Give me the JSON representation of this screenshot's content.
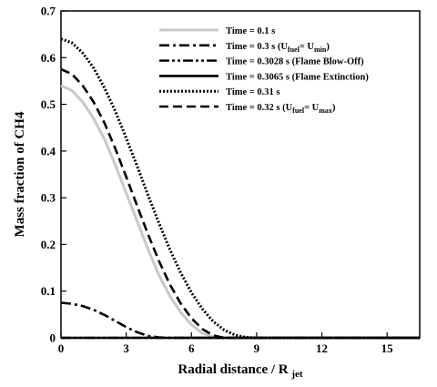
{
  "chart_data": {
    "type": "line",
    "title": "",
    "xlabel": {
      "text": "Radial distance / R",
      "sub": "jet"
    },
    "ylabel": "Mass fraction of CH4",
    "xlim": [
      0,
      16.5
    ],
    "ylim": [
      0,
      0.7
    ],
    "xticks": [
      0,
      3,
      6,
      9,
      12,
      15
    ],
    "yticks": [
      0,
      0.1,
      0.2,
      0.3,
      0.4,
      0.5,
      0.6,
      0.7
    ],
    "ytick_labels": [
      "0",
      "0.1",
      "0.2",
      "0.3",
      "0.4",
      "0.5",
      "0.6",
      "0.7"
    ],
    "grid": false,
    "legend_position": "top-right",
    "series": [
      {
        "name": "Time = 0.1 s",
        "legend": [
          {
            "t": "Time = 0.1 s"
          }
        ],
        "style": "solid",
        "color": "#c8c8c8",
        "width": 3,
        "x": [
          0,
          0.5,
          1,
          1.5,
          2,
          2.5,
          3,
          3.5,
          4,
          4.5,
          5,
          5.5,
          6,
          6.5,
          7,
          7.5,
          8,
          16.5
        ],
        "y": [
          0.54,
          0.53,
          0.505,
          0.47,
          0.425,
          0.37,
          0.31,
          0.25,
          0.19,
          0.135,
          0.09,
          0.055,
          0.028,
          0.01,
          0.002,
          0,
          0,
          0
        ]
      },
      {
        "name": "Time = 0.3 s (Ufuel= Umin)",
        "legend": [
          {
            "t": "Time = 0.3 s (U"
          },
          {
            "t": "fuel",
            "sub": true
          },
          {
            "t": "= U"
          },
          {
            "t": "min",
            "sub": true
          },
          {
            "t": ")"
          }
        ],
        "style": "dashdot",
        "color": "#000000",
        "width": 2.6,
        "x": [
          0,
          0.5,
          1,
          1.5,
          2,
          2.5,
          3,
          3.5,
          4,
          4.5,
          5,
          16.5
        ],
        "y": [
          0.075,
          0.073,
          0.068,
          0.06,
          0.049,
          0.036,
          0.023,
          0.012,
          0.004,
          0.001,
          0,
          0
        ]
      },
      {
        "name": "Time = 0.3028 s (Flame Blow-Off)",
        "legend": [
          {
            "t": "Time = 0.3028 s (Flame Blow-Off)"
          }
        ],
        "style": "dashdotdot",
        "color": "#000000",
        "width": 2.4,
        "x": [
          0,
          16.5
        ],
        "y": [
          0,
          0
        ]
      },
      {
        "name": "Time = 0.3065 s (Flame Extinction)",
        "legend": [
          {
            "t": "Time = 0.3065 s (Flame Extinction)"
          }
        ],
        "style": "solid",
        "color": "#000000",
        "width": 2.6,
        "x": [
          0,
          16.5
        ],
        "y": [
          0,
          0
        ]
      },
      {
        "name": "Time = 0.31 s",
        "legend": [
          {
            "t": "Time = 0.31 s"
          }
        ],
        "style": "dotted",
        "color": "#000000",
        "width": 3,
        "x": [
          0,
          0.5,
          1,
          1.5,
          2,
          2.5,
          3,
          3.5,
          4,
          4.5,
          5,
          5.5,
          6,
          6.5,
          7,
          7.5,
          8,
          8.5,
          9,
          9.5,
          16.5
        ],
        "y": [
          0.64,
          0.632,
          0.61,
          0.578,
          0.535,
          0.485,
          0.428,
          0.368,
          0.306,
          0.246,
          0.19,
          0.14,
          0.097,
          0.062,
          0.035,
          0.017,
          0.006,
          0.001,
          0,
          0,
          0
        ]
      },
      {
        "name": "Time = 0.32 s (Ufuel= Umax)",
        "legend": [
          {
            "t": "Time = 0.32 s (U"
          },
          {
            "t": "fuel",
            "sub": true
          },
          {
            "t": "= U"
          },
          {
            "t": "max",
            "sub": true
          },
          {
            "t": ")"
          }
        ],
        "style": "dashed",
        "color": "#000000",
        "width": 2.6,
        "x": [
          0,
          0.5,
          1,
          1.5,
          2,
          2.5,
          3,
          3.5,
          4,
          4.5,
          5,
          5.5,
          6,
          6.5,
          7,
          7.5,
          8,
          16.5
        ],
        "y": [
          0.575,
          0.565,
          0.54,
          0.505,
          0.46,
          0.405,
          0.345,
          0.283,
          0.222,
          0.165,
          0.115,
          0.074,
          0.042,
          0.019,
          0.005,
          0,
          0,
          0
        ]
      }
    ]
  }
}
